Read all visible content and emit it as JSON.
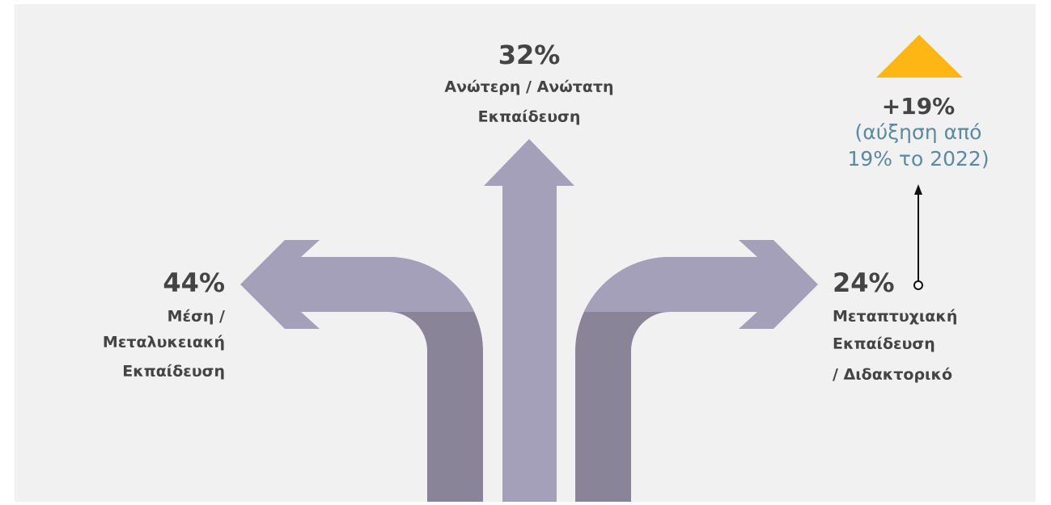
{
  "center": {
    "value": "32%",
    "label": [
      "Ανώτερη / Ανώτατη",
      "Εκπαίδευση"
    ]
  },
  "left": {
    "value": "44%",
    "label": [
      "Μέση /",
      "Μεταλυκειακή",
      "Εκπαίδευση"
    ]
  },
  "right": {
    "value": "24%",
    "label": [
      "Μεταπτυχιακή",
      "Εκπαίδευση",
      "/ Διδακτορικό"
    ]
  },
  "change": {
    "value": "+19%",
    "note": [
      "(αύξηση από",
      "19% το 2022)"
    ]
  }
}
